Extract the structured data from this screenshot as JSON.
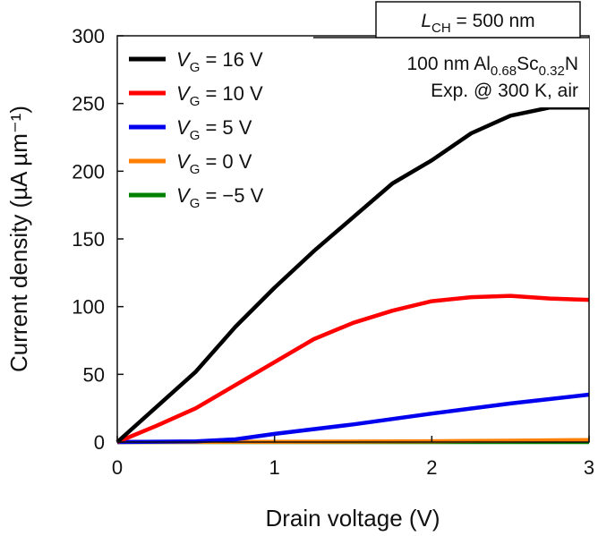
{
  "chart_data": {
    "type": "line",
    "title": "",
    "xlabel": "Drain voltage (V)",
    "ylabel": "Current density (µA µm⁻¹)",
    "xlim": [
      0,
      3
    ],
    "ylim": [
      0,
      300
    ],
    "xticks": [
      0,
      1,
      2,
      3
    ],
    "yticks": [
      0,
      50,
      100,
      150,
      200,
      250,
      300
    ],
    "grid": false,
    "legend_position": "top-left",
    "series": [
      {
        "name": "VG = 16 V",
        "var": "V",
        "sub": "G",
        "rest": " = 16 V",
        "color": "#000000",
        "x": [
          0,
          0.25,
          0.5,
          0.75,
          1.0,
          1.25,
          1.5,
          1.75,
          2.0,
          2.25,
          2.5,
          2.75,
          3.0
        ],
        "y": [
          0,
          26,
          52,
          85,
          114,
          141,
          166,
          191,
          208,
          228,
          241,
          247,
          247
        ]
      },
      {
        "name": "VG = 10 V",
        "var": "V",
        "sub": "G",
        "rest": " = 10 V",
        "color": "#ff0000",
        "x": [
          0,
          0.25,
          0.5,
          0.75,
          1.0,
          1.25,
          1.5,
          1.75,
          2.0,
          2.25,
          2.5,
          2.75,
          3.0
        ],
        "y": [
          0,
          12,
          25,
          42,
          59,
          76,
          88,
          97,
          104,
          107,
          108,
          106,
          105
        ]
      },
      {
        "name": "VG = 5 V",
        "var": "V",
        "sub": "G",
        "rest": " = 5 V",
        "color": "#0000ee",
        "x": [
          0,
          0.5,
          0.75,
          1.0,
          1.5,
          2.0,
          2.5,
          3.0
        ],
        "y": [
          0,
          0.5,
          2,
          6,
          13,
          21,
          28.5,
          35
        ]
      },
      {
        "name": "VG = 0 V",
        "var": "V",
        "sub": "G",
        "rest": " = 0 V",
        "color": "#ff8000",
        "x": [
          0,
          1.0,
          2.0,
          2.5,
          3.0
        ],
        "y": [
          0,
          0.2,
          0.6,
          1.0,
          1.5
        ]
      },
      {
        "name": "VG = -5 V",
        "var": "V",
        "sub": "G",
        "rest": " = −5 V",
        "color": "#008000",
        "x": [
          0,
          1.0,
          2.0,
          3.0
        ],
        "y": [
          0,
          0,
          0,
          0
        ]
      }
    ],
    "annotations": {
      "channel_length": {
        "var": "L",
        "sub": "CH",
        "rest": " = 500 nm"
      },
      "material_line": {
        "prefix": "100 nm Al",
        "sub1": "0.68",
        "mid": "Sc",
        "sub2": "0.32",
        "suffix": "N"
      },
      "condition_line": "Exp. @ 300 K, air"
    }
  }
}
